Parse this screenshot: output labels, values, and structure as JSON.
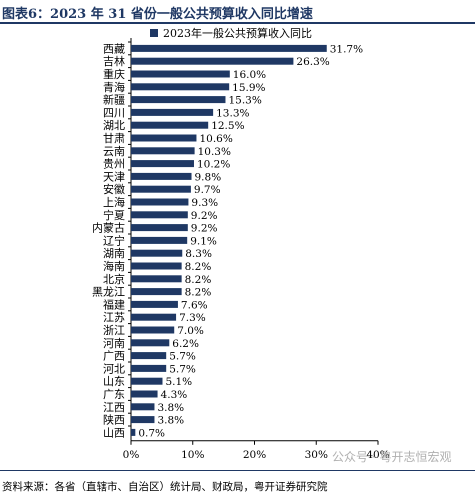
{
  "figure_title": "图表6：2023 年 31 省份一般公共预算收入同比增速",
  "source_note": "资料来源：各省（直辖市、自治区）统计局、财政局，粤开证券研究院",
  "watermark": "公众号 · 粤开志恒宏观",
  "chart_data": {
    "type": "bar",
    "orientation": "horizontal",
    "bar_color": "#1f3864",
    "legend": "2023年一般公共预算收入同比",
    "legend_placement": "top-center",
    "grid": false,
    "categories": [
      "西藏",
      "吉林",
      "重庆",
      "青海",
      "新疆",
      "四川",
      "湖北",
      "甘肃",
      "云南",
      "贵州",
      "天津",
      "安徽",
      "上海",
      "宁夏",
      "内蒙古",
      "辽宁",
      "湖南",
      "海南",
      "北京",
      "黑龙江",
      "福建",
      "江苏",
      "浙江",
      "河南",
      "广西",
      "河北",
      "山东",
      "广东",
      "江西",
      "陕西",
      "山西"
    ],
    "values": [
      31.7,
      26.3,
      16.0,
      15.9,
      15.3,
      13.3,
      12.5,
      10.6,
      10.3,
      10.2,
      9.8,
      9.7,
      9.3,
      9.2,
      9.2,
      9.1,
      8.3,
      8.2,
      8.2,
      8.2,
      7.6,
      7.3,
      7.0,
      6.2,
      5.7,
      5.7,
      5.1,
      4.3,
      3.8,
      3.8,
      0.7
    ],
    "value_labels": [
      "31.7%",
      "26.3%",
      "16.0%",
      "15.9%",
      "15.3%",
      "13.3%",
      "12.5%",
      "10.6%",
      "10.3%",
      "10.2%",
      "9.8%",
      "9.7%",
      "9.3%",
      "9.2%",
      "9.2%",
      "9.1%",
      "8.3%",
      "8.2%",
      "8.2%",
      "8.2%",
      "7.6%",
      "7.3%",
      "7.0%",
      "6.2%",
      "5.7%",
      "5.7%",
      "5.1%",
      "4.3%",
      "3.8%",
      "3.8%",
      "0.7%"
    ],
    "xlim": [
      0,
      40
    ],
    "xticks": [
      0,
      10,
      20,
      30,
      40
    ],
    "xtick_labels": [
      "0%",
      "10%",
      "20%",
      "30%",
      "40%"
    ]
  }
}
